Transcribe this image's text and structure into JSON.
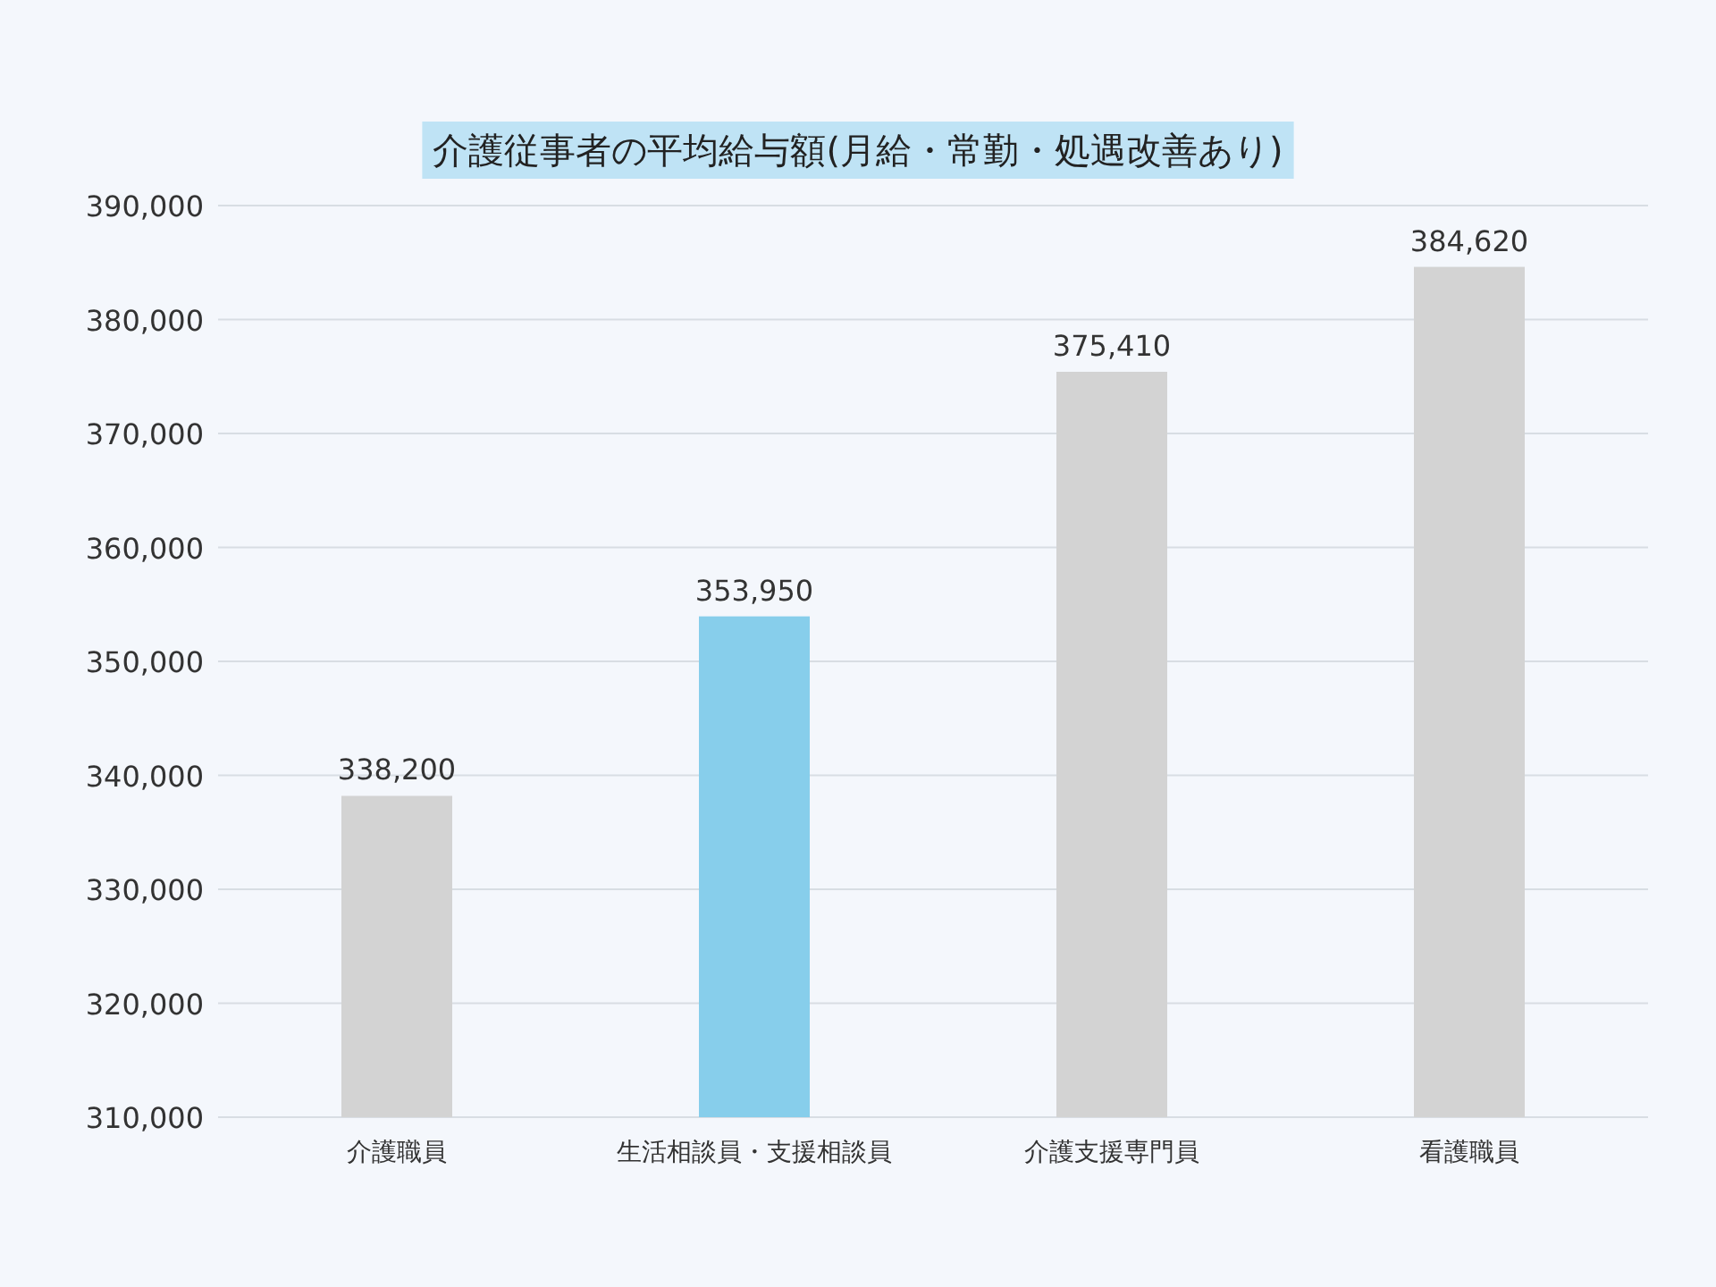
{
  "chart_data": {
    "type": "bar",
    "title": "介護従事者の平均給与額(月給・常勤・処遇改善あり)",
    "categories": [
      "介護職員",
      "生活相談員・支援相談員",
      "介護支援専門員",
      "看護職員"
    ],
    "values": [
      338200,
      353950,
      375410,
      384620
    ],
    "colors": [
      "#d3d3d3",
      "#87ceeb",
      "#d3d3d3",
      "#d3d3d3"
    ],
    "value_labels": [
      "338,200",
      "353,950",
      "375,410",
      "384,620"
    ],
    "ylim": [
      310000,
      390000
    ],
    "yticks": [
      {
        "value": 310000,
        "label": "310,000"
      },
      {
        "value": 320000,
        "label": "320,000"
      },
      {
        "value": 330000,
        "label": "330,000"
      },
      {
        "value": 340000,
        "label": "340,000"
      },
      {
        "value": 350000,
        "label": "350,000"
      },
      {
        "value": 360000,
        "label": "360,000"
      },
      {
        "value": 370000,
        "label": "370,000"
      },
      {
        "value": 380000,
        "label": "380,000"
      },
      {
        "value": 390000,
        "label": "390,000"
      }
    ],
    "grid": "y"
  }
}
